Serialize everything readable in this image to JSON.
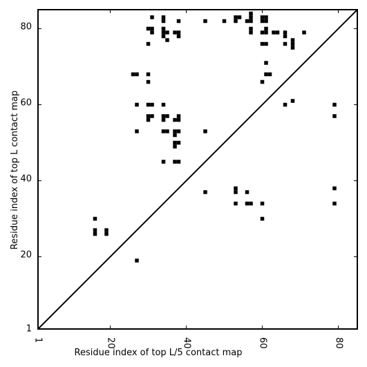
{
  "chart_data": {
    "type": "heatmap",
    "title": "",
    "xlabel": "Residue index of top L/5 contact map",
    "ylabel": "Residue index of top L contact map",
    "xlim": [
      1,
      85
    ],
    "ylim": [
      1,
      85
    ],
    "x_ticks": [
      1,
      20,
      40,
      60,
      80
    ],
    "y_ticks": [
      1,
      20,
      40,
      60,
      80
    ],
    "x_tick_labels": [
      "1",
      "20",
      "40",
      "60",
      "80"
    ],
    "y_tick_labels": [
      "1",
      "20",
      "40",
      "60",
      "80"
    ],
    "x_tick_rotation": -90,
    "grid": false,
    "diagonal": true,
    "cell_color": "#000000",
    "upper_contacts": [
      [
        31,
        83
      ],
      [
        34,
        83
      ],
      [
        34,
        82
      ],
      [
        38,
        82
      ],
      [
        45,
        82
      ],
      [
        50,
        82
      ],
      [
        53,
        83
      ],
      [
        54,
        83
      ],
      [
        53,
        82
      ],
      [
        56,
        82
      ],
      [
        57,
        82
      ],
      [
        57,
        83
      ],
      [
        57,
        84
      ],
      [
        60,
        83
      ],
      [
        61,
        83
      ],
      [
        60,
        82
      ],
      [
        61,
        82
      ],
      [
        30,
        80
      ],
      [
        31,
        80
      ],
      [
        31,
        79
      ],
      [
        34,
        80
      ],
      [
        34,
        79
      ],
      [
        34,
        78
      ],
      [
        35,
        79
      ],
      [
        37,
        79
      ],
      [
        38,
        79
      ],
      [
        38,
        78
      ],
      [
        35,
        77
      ],
      [
        57,
        80
      ],
      [
        57,
        79
      ],
      [
        60,
        79
      ],
      [
        61,
        79
      ],
      [
        61,
        80
      ],
      [
        63,
        79
      ],
      [
        64,
        79
      ],
      [
        66,
        79
      ],
      [
        66,
        78
      ],
      [
        71,
        79
      ],
      [
        30,
        76
      ],
      [
        60,
        76
      ],
      [
        61,
        76
      ],
      [
        66,
        76
      ],
      [
        68,
        77
      ],
      [
        68,
        76
      ],
      [
        68,
        75
      ],
      [
        61,
        71
      ],
      [
        26,
        68
      ],
      [
        27,
        68
      ],
      [
        30,
        68
      ],
      [
        61,
        68
      ],
      [
        62,
        68
      ],
      [
        30,
        66
      ],
      [
        60,
        66
      ],
      [
        27,
        60
      ],
      [
        30,
        60
      ],
      [
        31,
        60
      ],
      [
        34,
        60
      ],
      [
        66,
        60
      ],
      [
        68,
        61
      ],
      [
        79,
        60
      ],
      [
        30,
        57
      ],
      [
        31,
        57
      ],
      [
        34,
        57
      ],
      [
        35,
        57
      ],
      [
        38,
        57
      ],
      [
        30,
        56
      ],
      [
        34,
        56
      ],
      [
        37,
        56
      ],
      [
        38,
        56
      ],
      [
        79,
        57
      ],
      [
        27,
        53
      ],
      [
        34,
        53
      ],
      [
        35,
        53
      ],
      [
        37,
        53
      ],
      [
        38,
        53
      ],
      [
        45,
        53
      ],
      [
        37,
        52
      ],
      [
        37,
        50
      ],
      [
        38,
        50
      ],
      [
        37,
        49
      ],
      [
        34,
        45
      ],
      [
        37,
        45
      ],
      [
        38,
        45
      ]
    ],
    "lower_contacts": [
      [
        45,
        37
      ],
      [
        53,
        38
      ],
      [
        53,
        37
      ],
      [
        56,
        37
      ],
      [
        79,
        38
      ],
      [
        53,
        34
      ],
      [
        56,
        34
      ],
      [
        57,
        34
      ],
      [
        60,
        34
      ],
      [
        79,
        34
      ],
      [
        16,
        30
      ],
      [
        60,
        30
      ],
      [
        16,
        27
      ],
      [
        16,
        26
      ],
      [
        19,
        27
      ],
      [
        19,
        26
      ],
      [
        27,
        19
      ]
    ]
  }
}
